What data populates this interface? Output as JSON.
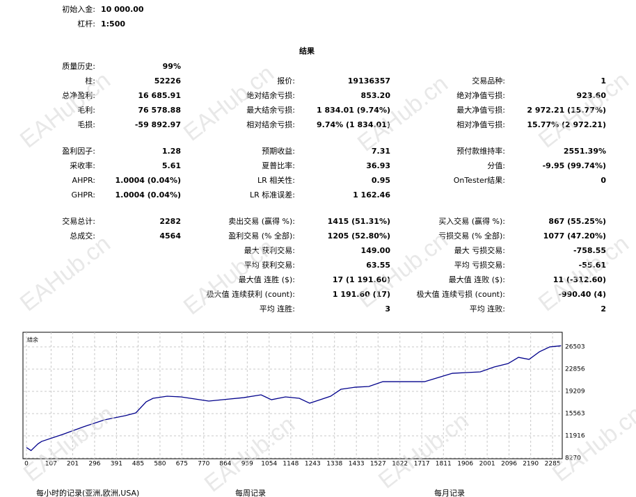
{
  "header": {
    "rows": [
      [
        "初始入金:",
        "10 000.00"
      ],
      [
        "杠杆:",
        "1:500"
      ]
    ]
  },
  "results": {
    "title": "结果",
    "sections": [
      [
        [
          [
            "质量历史:",
            "99%"
          ],
          null,
          null
        ],
        [
          [
            "柱:",
            "52226"
          ],
          [
            "报价:",
            "19136357"
          ],
          [
            "交易品种:",
            "1"
          ]
        ],
        [
          [
            "总净盈利:",
            "16 685.91"
          ],
          [
            "绝对结余亏损:",
            "853.20"
          ],
          [
            "绝对净值亏损:",
            "923.60"
          ]
        ],
        [
          [
            "毛利:",
            "76 578.88"
          ],
          [
            "最大结余亏损:",
            "1 834.01 (9.74%)"
          ],
          [
            "最大净值亏损:",
            "2 972.21 (15.77%)"
          ]
        ],
        [
          [
            "毛损:",
            "-59 892.97"
          ],
          [
            "相对结余亏损:",
            "9.74% (1 834.01)"
          ],
          [
            "相对净值亏损:",
            "15.77% (2 972.21)"
          ]
        ]
      ],
      [
        [
          [
            "盈利因子:",
            "1.28"
          ],
          [
            "预期收益:",
            "7.31"
          ],
          [
            "预付款维持率:",
            "2551.39%"
          ]
        ],
        [
          [
            "采收率:",
            "5.61"
          ],
          [
            "夏普比率:",
            "36.93"
          ],
          [
            "分值:",
            "-9.95 (99.74%)"
          ]
        ],
        [
          [
            "AHPR:",
            "1.0004 (0.04%)"
          ],
          [
            "LR 相关性:",
            "0.95"
          ],
          [
            "OnTester结果:",
            "0"
          ]
        ],
        [
          [
            "GHPR:",
            "1.0004 (0.04%)"
          ],
          [
            "LR 标准误差:",
            "1 162.46"
          ],
          null
        ]
      ],
      [
        [
          [
            "交易总计:",
            "2282"
          ],
          [
            "卖出交易 (赢得 %):",
            "1415 (51.31%)"
          ],
          [
            "买入交易 (赢得 %):",
            "867 (55.25%)"
          ]
        ],
        [
          [
            "总成交:",
            "4564"
          ],
          [
            "盈利交易 (% 全部):",
            "1205 (52.80%)"
          ],
          [
            "亏损交易 (% 全部):",
            "1077 (47.20%)"
          ]
        ],
        [
          null,
          [
            "最大 获利交易:",
            "149.00"
          ],
          [
            "最大 亏损交易:",
            "-758.55"
          ]
        ],
        [
          null,
          [
            "平均 获利交易:",
            "63.55"
          ],
          [
            "平均 亏损交易:",
            "-55.61"
          ]
        ],
        [
          null,
          [
            "最大值 连胜 ($):",
            "17 (1 191.60)"
          ],
          [
            "最大值 连败 ($):",
            "11 (-312.60)"
          ]
        ],
        [
          null,
          [
            "极大值 连续获利 (count):",
            "1 191.60 (17)"
          ],
          [
            "极大值 连续亏损 (count):",
            "-990.40 (4)"
          ]
        ],
        [
          null,
          [
            "平均 连胜:",
            "3"
          ],
          [
            "平均 连败:",
            "2"
          ]
        ]
      ]
    ]
  },
  "chart_data": {
    "type": "line",
    "x": [
      0,
      20,
      50,
      66,
      157,
      248,
      339,
      429,
      475,
      520,
      550,
      611,
      671,
      732,
      792,
      852,
      943,
      1019,
      1064,
      1125,
      1185,
      1230,
      1276,
      1321,
      1366,
      1427,
      1487,
      1548,
      1608,
      1669,
      1729,
      1790,
      1850,
      1911,
      1971,
      2031,
      2092,
      2137,
      2183,
      2228,
      2273,
      2322
    ],
    "series": [
      {
        "name": "结余",
        "color": "#00008b",
        "values": [
          10000,
          9500,
          10600,
          11000,
          12140,
          13400,
          14540,
          15220,
          15680,
          17500,
          18070,
          18410,
          18300,
          17960,
          17620,
          17840,
          18180,
          18640,
          17840,
          18300,
          18070,
          17270,
          17840,
          18410,
          19550,
          19890,
          20010,
          20800,
          20800,
          20800,
          20800,
          21490,
          22170,
          22290,
          22400,
          23200,
          23770,
          24790,
          24450,
          25700,
          26500,
          26686
        ]
      }
    ],
    "xlim": [
      0,
      2324
    ],
    "xticks": [
      0,
      107,
      201,
      296,
      391,
      485,
      580,
      675,
      770,
      864,
      959,
      1054,
      1148,
      1243,
      1338,
      1433,
      1527,
      1622,
      1717,
      1811,
      1906,
      2001,
      2096,
      2190,
      2285
    ],
    "ylim": [
      8270,
      28330
    ],
    "yticks": [
      8270,
      11916,
      15563,
      19209,
      22856,
      26503
    ],
    "grid": true
  },
  "footer": [
    "每小时的记录(亚洲,欧洲,USA)",
    "每周记录",
    "每月记录"
  ],
  "watermark": "EAHub.cn"
}
